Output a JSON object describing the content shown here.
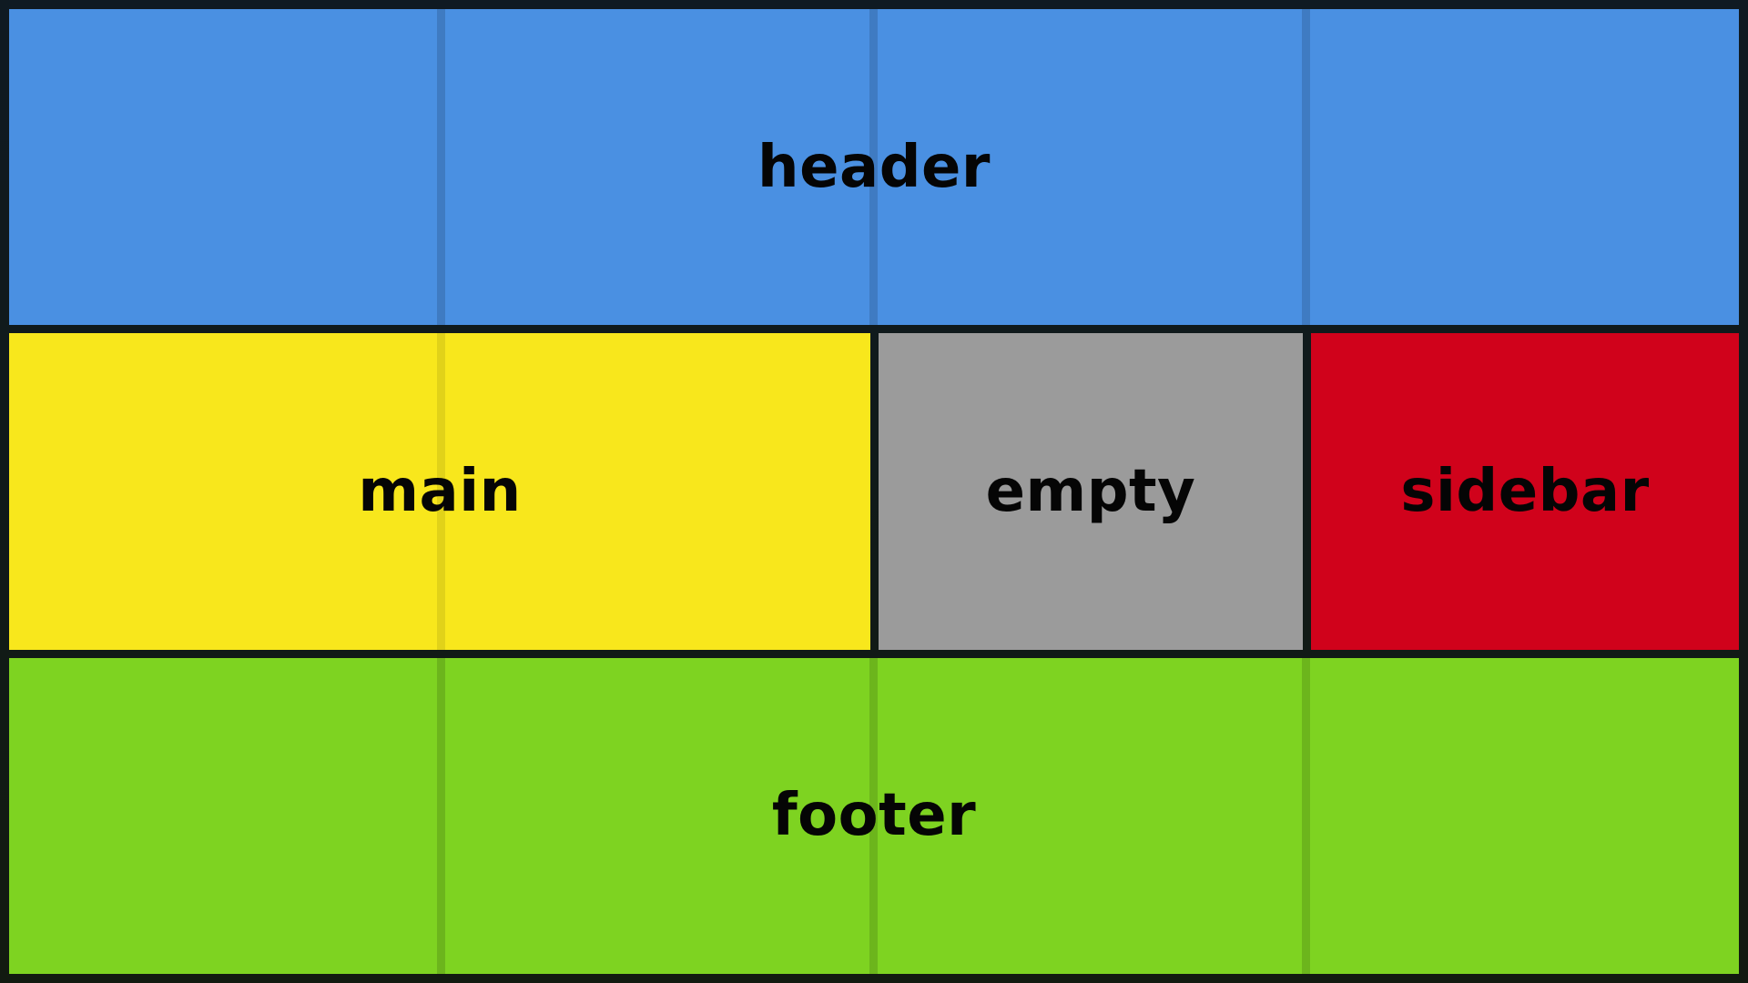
{
  "areas": {
    "header": "header",
    "main": "main",
    "empty": "empty",
    "sidebar": "sidebar",
    "footer": "footer"
  },
  "colors": {
    "header": "#4a90e2",
    "main": "#f8e71c",
    "empty": "#9b9b9b",
    "sidebar": "#d0021b",
    "footer": "#7ed321",
    "background": "#121a16"
  }
}
